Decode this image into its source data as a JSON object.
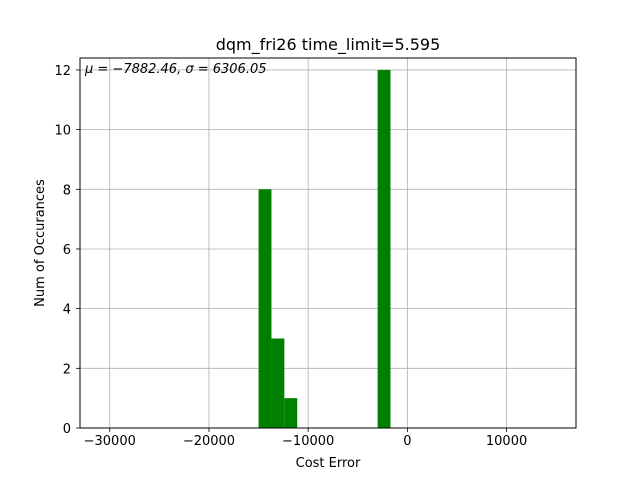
{
  "chart_data": {
    "type": "bar",
    "title": "dqm_fri26 time_limit=5.595",
    "xlabel": "Cost Error",
    "ylabel": "Num of Occurances",
    "annotation": "μ = −7882.46,  σ = 6306.05",
    "xlim": [
      -33000,
      17000
    ],
    "ylim": [
      0,
      12.4
    ],
    "xticks": [
      -30000,
      -20000,
      -10000,
      0,
      10000
    ],
    "xtick_labels": [
      "−30000",
      "−20000",
      "−10000",
      "0",
      "10000"
    ],
    "yticks": [
      0,
      2,
      4,
      6,
      8,
      10,
      12
    ],
    "ytick_labels": [
      "0",
      "2",
      "4",
      "6",
      "8",
      "10",
      "12"
    ],
    "grid": true,
    "bar_color": "#008000",
    "bins": [
      {
        "x0": -15000,
        "x1": -13700,
        "count": 8
      },
      {
        "x0": -13700,
        "x1": -12400,
        "count": 3
      },
      {
        "x0": -12400,
        "x1": -11100,
        "count": 1
      },
      {
        "x0": -3000,
        "x1": -1700,
        "count": 12
      }
    ]
  }
}
